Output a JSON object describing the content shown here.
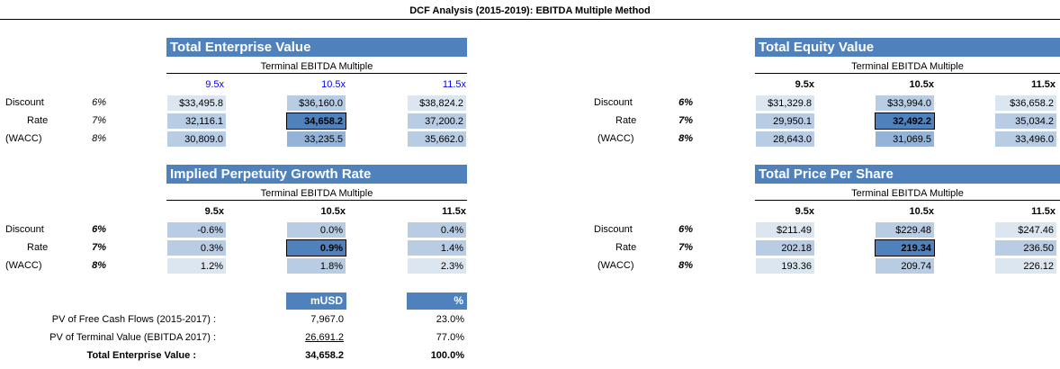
{
  "title": "DCF Analysis (2015-2019):  EBITDA Multiple Method",
  "row_labels": [
    "Discount",
    "Rate",
    "(WACC)"
  ],
  "rates": [
    "6%",
    "7%",
    "8%"
  ],
  "subtitle": "Terminal EBITDA Multiple",
  "multiples": [
    "9.5x",
    "10.5x",
    "11.5x"
  ],
  "tev": {
    "title": "Total Enterprise Value",
    "cells": [
      [
        "$33,495.8",
        "$36,160.0",
        "$38,824.2"
      ],
      [
        "32,116.1",
        "34,658.2",
        "37,200.2"
      ],
      [
        "30,809.0",
        "33,235.5",
        "35,662.0"
      ]
    ]
  },
  "tequity": {
    "title": "Total Equity Value",
    "cells": [
      [
        "$31,329.8",
        "$33,994.0",
        "$36,658.2"
      ],
      [
        "29,950.1",
        "32,492.2",
        "35,034.2"
      ],
      [
        "28,643.0",
        "31,069.5",
        "33,496.0"
      ]
    ]
  },
  "growth": {
    "title": "Implied Perpetuity Growth Rate",
    "cells": [
      [
        "-0.6%",
        "0.0%",
        "0.4%"
      ],
      [
        "0.3%",
        "0.9%",
        "1.4%"
      ],
      [
        "1.2%",
        "1.8%",
        "2.3%"
      ]
    ]
  },
  "price": {
    "title": "Total Price Per Share",
    "cells": [
      [
        "$211.49",
        "$229.48",
        "$247.46"
      ],
      [
        "202.18",
        "219.34",
        "236.50"
      ],
      [
        "193.36",
        "209.74",
        "226.12"
      ]
    ]
  },
  "summary": {
    "col_musd": "mUSD",
    "col_pct": "%",
    "rows": [
      {
        "label": "PV of Free Cash Flows (2015-2017) :",
        "musd": "7,967.0",
        "pct": "23.0%"
      },
      {
        "label": "PV of Terminal Value (EBITDA 2017) :",
        "musd": "26,691.2",
        "pct": "77.0%"
      },
      {
        "label": "Total Enterprise Value :",
        "musd": "34,658.2",
        "pct": "100.0%"
      }
    ]
  }
}
